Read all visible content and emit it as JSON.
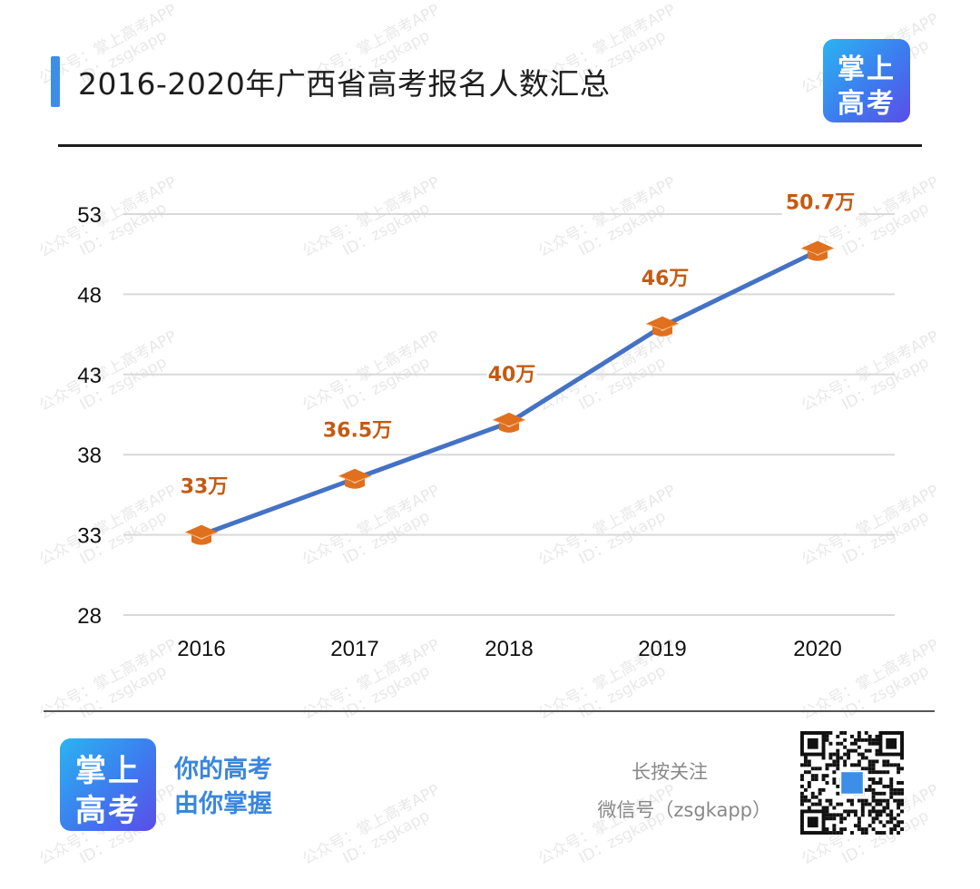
{
  "header": {
    "title": "2016-2020年广西省高考报名人数汇总",
    "accent_color": "#3d8ee6",
    "logo": {
      "line1": "掌上",
      "line2": "高考"
    }
  },
  "chart_data": {
    "type": "line",
    "title": "2016-2020年广西省高考报名人数汇总",
    "xlabel": "",
    "ylabel": "",
    "categories": [
      "2016",
      "2017",
      "2018",
      "2019",
      "2020"
    ],
    "values": [
      33,
      36.5,
      40,
      46,
      50.7
    ],
    "data_labels": [
      "33万",
      "36.5万",
      "40万",
      "46万",
      "50.7万"
    ],
    "unit": "万",
    "yticks": [
      28,
      33,
      38,
      43,
      48,
      53
    ],
    "ylim": [
      28,
      53
    ],
    "grid": true,
    "legend": "none",
    "line_color": "#4472c4",
    "marker": "graduation-cap",
    "marker_color": "#e0701e",
    "label_color": "#c55a11"
  },
  "watermark": {
    "line1": "公众号：掌上高考APP",
    "line2": "ID：zsgkapp"
  },
  "footer": {
    "logo": {
      "line1": "掌上",
      "line2": "高考"
    },
    "slogan_line1": "你的高考",
    "slogan_line2": "由你掌握",
    "follow_line1": "长按关注",
    "follow_line2": "微信号（zsgkapp）",
    "qr_label": "qr-code"
  }
}
